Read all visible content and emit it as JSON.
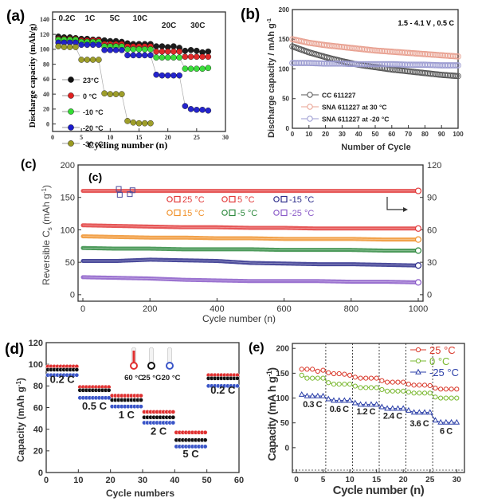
{
  "chart_data": [
    {
      "panel": "(a)",
      "type": "scatter",
      "xlabel": "Cycling number (n)",
      "ylabel": "Discharge capacity (mAh/g)",
      "xlim": [
        0,
        30
      ],
      "ylim": [
        -10,
        150
      ],
      "xticks": [
        0,
        5,
        10,
        15,
        20,
        25,
        30
      ],
      "yticks": [
        0,
        20,
        40,
        60,
        80,
        100,
        120,
        140
      ],
      "legend": "center-left",
      "rate_labels": [
        {
          "text": "0.2C",
          "x": 2.5
        },
        {
          "text": "1C",
          "x": 6.5
        },
        {
          "text": "5C",
          "x": 10.8
        },
        {
          "text": "10C",
          "x": 15.2
        },
        {
          "text": "20C",
          "x": 20.2
        },
        {
          "text": "30C",
          "x": 25.2
        }
      ],
      "x": [
        1,
        2,
        3,
        4,
        5,
        6,
        7,
        8,
        9,
        10,
        11,
        12,
        13,
        14,
        15,
        16,
        17,
        18,
        19,
        20,
        21,
        22,
        23,
        24,
        25,
        26,
        27
      ],
      "series": [
        {
          "name": "23°C",
          "color": "#111111",
          "values": [
            117,
            116,
            116,
            115,
            114,
            114,
            113,
            113,
            112,
            111,
            111,
            110,
            108,
            107,
            107,
            107,
            107,
            104,
            104,
            103,
            104,
            102,
            98,
            99,
            98,
            96,
            97
          ]
        },
        {
          "name": "0 °C",
          "color": "#e02020",
          "values": [
            114,
            114,
            114,
            114,
            112,
            112,
            112,
            112,
            107,
            107,
            107,
            107,
            104,
            104,
            104,
            104,
            104,
            97,
            97,
            97,
            97,
            97,
            90,
            90,
            90,
            90,
            90
          ]
        },
        {
          "name": "-10 °C",
          "color": "#33dd33",
          "values": [
            113,
            113,
            113,
            113,
            110,
            110,
            110,
            110,
            104,
            104,
            104,
            104,
            100,
            100,
            100,
            100,
            100,
            89,
            89,
            89,
            89,
            89,
            74,
            74,
            74,
            74,
            75
          ]
        },
        {
          "name": "-20 °C",
          "color": "#1a1acc",
          "values": [
            109,
            109,
            109,
            109,
            106,
            106,
            106,
            106,
            99,
            99,
            99,
            99,
            92,
            92,
            92,
            92,
            92,
            66,
            65,
            65,
            65,
            65,
            24,
            20,
            19,
            19,
            18
          ]
        },
        {
          "name": "-30 °C",
          "color": "#9a9a20",
          "values": [
            104,
            103,
            103,
            103,
            86,
            86,
            86,
            86,
            41,
            40,
            40,
            40,
            4,
            2,
            1,
            1,
            1
          ]
        }
      ]
    },
    {
      "panel": "(b)",
      "type": "line",
      "xlabel": "Number of Cycle",
      "ylabel": "Discharge capacity / mAh g⁻¹",
      "annotation": "1.5 - 4.1 V , 0.5 C",
      "xlim": [
        0,
        100
      ],
      "ylim": [
        0,
        200
      ],
      "xticks": [
        0,
        10,
        20,
        30,
        40,
        50,
        60,
        70,
        80,
        90,
        100
      ],
      "yticks": [
        0,
        50,
        100,
        150,
        200
      ],
      "legend": "bottom-left",
      "x": [
        0,
        10,
        20,
        30,
        40,
        50,
        60,
        70,
        80,
        90,
        100
      ],
      "series": [
        {
          "name": "CC 611227",
          "color": "#555555",
          "values": [
            138,
            128,
            120,
            113,
            107,
            103,
            99,
            96,
            93,
            90,
            88
          ]
        },
        {
          "name": "SNA  611227 at 30 °C",
          "color": "#e8a090",
          "values": [
            150,
            144,
            140,
            137,
            134,
            131,
            129,
            127,
            125,
            123,
            121
          ]
        },
        {
          "name": "SNA  611227 at -20 °C",
          "color": "#9a9ad0",
          "values": [
            110,
            110,
            109,
            109,
            108,
            108,
            108,
            107,
            107,
            106,
            106
          ]
        }
      ]
    },
    {
      "panel": "(c)",
      "inner_label": "(c)",
      "type": "scatter",
      "xlabel": "Cycle number (n)",
      "ylabel": "Reversible Cs (mAh g-1)",
      "xlim": [
        0,
        1000
      ],
      "ylim": [
        0,
        200
      ],
      "y2lim": [
        0,
        120
      ],
      "xticks": [
        0,
        200,
        400,
        600,
        800,
        1000
      ],
      "yticks": [
        0,
        50,
        100,
        150,
        200
      ],
      "y2ticks": [
        0,
        30,
        60,
        90,
        120
      ],
      "legend": "top-center",
      "x": [
        0,
        100,
        200,
        300,
        400,
        500,
        600,
        700,
        800,
        900,
        1000
      ],
      "series": [
        {
          "name": "25 °C",
          "color": "#e23a3a",
          "values": [
            160,
            160,
            160,
            160,
            160,
            160,
            160,
            160,
            160,
            160,
            160
          ]
        },
        {
          "name": "5 °C",
          "color": "#e23a3a",
          "values": [
            107,
            106,
            105,
            104,
            104,
            103,
            103,
            102,
            102,
            102,
            102
          ]
        },
        {
          "name": "15 °C",
          "color": "#f0922c",
          "values": [
            90,
            89,
            88,
            88,
            87,
            87,
            86,
            86,
            86,
            85,
            85
          ]
        },
        {
          "name": "-5 °C",
          "color": "#2f8a3f",
          "values": [
            72,
            71,
            71,
            70,
            70,
            70,
            69,
            69,
            69,
            68,
            68
          ]
        },
        {
          "name": "-15 °C",
          "color": "#2c2c8a",
          "values": [
            52,
            52,
            54,
            53,
            52,
            49,
            48,
            47,
            47,
            46,
            45
          ]
        },
        {
          "name": "-25 °C",
          "color": "#8a5ac8",
          "values": [
            27,
            26,
            25,
            23,
            22,
            21,
            21,
            21,
            20,
            20,
            19
          ]
        }
      ],
      "legend_entries": [
        "25 °C",
        "5 °C",
        "-15 °C",
        "15 °C",
        "-5 °C",
        "-25 °C"
      ]
    },
    {
      "panel": "(d)",
      "type": "scatter",
      "xlabel": "Cycle numbers",
      "ylabel": "Capacity (mAh g⁻¹)",
      "xlim": [
        0,
        60
      ],
      "ylim": [
        0,
        120
      ],
      "xticks": [
        0,
        10,
        20,
        30,
        40,
        50,
        60
      ],
      "yticks": [
        0,
        20,
        40,
        60,
        80,
        100,
        120
      ],
      "legend": "top-center",
      "rate_labels": [
        {
          "text": "0.2 C",
          "x": 5,
          "y": 83
        },
        {
          "text": "0.5 C",
          "x": 15,
          "y": 58
        },
        {
          "text": "1 C",
          "x": 25,
          "y": 50
        },
        {
          "text": "2 C",
          "x": 35,
          "y": 35
        },
        {
          "text": "5 C",
          "x": 45,
          "y": 14
        },
        {
          "text": "0.2 C",
          "x": 55,
          "y": 73
        }
      ],
      "segments": [
        [
          1,
          10
        ],
        [
          11,
          20
        ],
        [
          21,
          30
        ],
        [
          31,
          40
        ],
        [
          41,
          50
        ],
        [
          51,
          60
        ]
      ],
      "series": [
        {
          "name": "60 °C",
          "color": "#e03030",
          "values": [
            98,
            79,
            71,
            56,
            37,
            90
          ]
        },
        {
          "name": "25 °C",
          "color": "#111111",
          "values": [
            95,
            76,
            67,
            51,
            30,
            87
          ]
        },
        {
          "name": "-20 °C",
          "color": "#3a55c8",
          "values": [
            90,
            69,
            61,
            46,
            24,
            80
          ]
        }
      ]
    },
    {
      "panel": "(e)",
      "type": "line",
      "xlabel": "Cycle number (n)",
      "ylabel": "Capacity (mA h g⁻¹)",
      "xlim": [
        0,
        31
      ],
      "ylim": [
        -50,
        210
      ],
      "xticks": [
        0,
        5,
        10,
        15,
        20,
        25,
        30
      ],
      "yticks": [
        0,
        50,
        100,
        150,
        200
      ],
      "legend": "top-right",
      "dividers": [
        5.5,
        10.5,
        15.5,
        20.5,
        25.5
      ],
      "rate_labels": [
        {
          "text": "0.3 C",
          "x": 3.0,
          "y": 82
        },
        {
          "text": "0.6 C",
          "x": 8.0,
          "y": 72
        },
        {
          "text": "1.2 C",
          "x": 13.0,
          "y": 67
        },
        {
          "text": "2.4 C",
          "x": 18.0,
          "y": 58
        },
        {
          "text": "3.6 C",
          "x": 23.0,
          "y": 43
        },
        {
          "text": "6 C",
          "x": 28.0,
          "y": 28
        }
      ],
      "x": [
        1,
        2,
        3,
        4,
        5,
        6,
        7,
        8,
        9,
        10,
        11,
        12,
        13,
        14,
        15,
        16,
        17,
        18,
        19,
        20,
        21,
        22,
        23,
        24,
        25,
        26,
        27,
        28,
        29,
        30
      ],
      "series": [
        {
          "name": "25 °C",
          "color": "#d9392b",
          "marker": "circle",
          "values": [
            158,
            158,
            158,
            154,
            156,
            151,
            149,
            149,
            148,
            146,
            142,
            140,
            140,
            140,
            140,
            135,
            132,
            132,
            132,
            132,
            128,
            126,
            126,
            126,
            125,
            120,
            118,
            118,
            118,
            118
          ]
        },
        {
          "name": "0 °C",
          "color": "#7ab830",
          "marker": "circle",
          "values": [
            146,
            140,
            140,
            140,
            140,
            131,
            128,
            128,
            128,
            128,
            124,
            121,
            121,
            121,
            121,
            117,
            114,
            114,
            114,
            114,
            112,
            110,
            110,
            110,
            110,
            102,
            100,
            100,
            100,
            100
          ]
        },
        {
          "name": "-25 °C",
          "color": "#2b3fa8",
          "marker": "triangle",
          "values": [
            107,
            104,
            104,
            104,
            104,
            98,
            95,
            95,
            95,
            95,
            90,
            87,
            87,
            87,
            87,
            82,
            79,
            79,
            79,
            79,
            75,
            71,
            71,
            71,
            71,
            55,
            51,
            51,
            51,
            51
          ]
        }
      ]
    }
  ],
  "labels": {
    "a": {
      "panel": "(a)",
      "xlabel": "Cycling number (n)",
      "ylabel": "Discharge capacity (mAh/g)"
    },
    "b": {
      "panel": "(b)",
      "xlabel": "Number of Cycle",
      "ylabel": "Discharge capacity / mAh g",
      "ylabel_sup": "-1",
      "annotation": "1.5 - 4.1 V , 0.5 C"
    },
    "c": {
      "panel": "(c)",
      "inner": "(c)",
      "xlabel": "Cycle number (n)",
      "ylabel_pre": "Reversible C",
      "ylabel_sub": "s",
      "ylabel_post": " (mAh g",
      "ylabel_sup": "-1",
      "ylabel_end": ")"
    },
    "d": {
      "panel": "(d)",
      "xlabel": "Cycle numbers",
      "ylabel": "Capacity (mAh g",
      "ylabel_sup": "-1",
      "ylabel_end": ")"
    },
    "e": {
      "panel": "(e)",
      "xlabel": "Cycle number (n)",
      "ylabel": "Capacity (mA h g",
      "ylabel_sup": "-1",
      "ylabel_end": ")"
    }
  }
}
